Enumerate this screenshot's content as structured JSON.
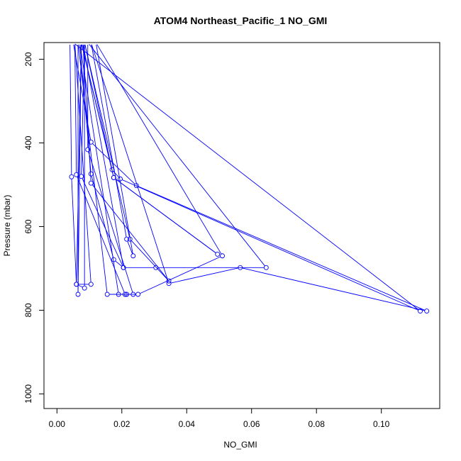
{
  "chart_data": {
    "type": "scatter",
    "title": "ATOM4 Northeast_Pacific_1 NO_GMI",
    "xlabel": "NO_GMI",
    "ylabel": "Pressure (mbar)",
    "xlim": [
      -0.004,
      0.118
    ],
    "ylim": [
      1035,
      160
    ],
    "y_inverted": true,
    "x_ticks": [
      "0.00",
      "0.02",
      "0.04",
      "0.06",
      "0.08",
      "0.10"
    ],
    "y_ticks": [
      "200",
      "400",
      "600",
      "800",
      "1000"
    ],
    "grid": false,
    "legend": "none",
    "colors": {
      "series": "#0000ff",
      "axis": "#000000"
    },
    "series": [
      {
        "points": [
          {
            "x": 0.004,
            "y": 160
          },
          {
            "x": 0.0045,
            "y": 481
          },
          {
            "x": 0.006,
            "y": 738
          },
          {
            "x": 0.0105,
            "y": 738
          },
          {
            "x": 0.0055,
            "y": 160
          },
          {
            "x": 0.006,
            "y": 476
          },
          {
            "x": 0.021,
            "y": 762
          },
          {
            "x": 0.0155,
            "y": 762
          },
          {
            "x": 0.0065,
            "y": 160
          },
          {
            "x": 0.0065,
            "y": 762
          },
          {
            "x": 0.0075,
            "y": 160
          },
          {
            "x": 0.006,
            "y": 738
          },
          {
            "x": 0.0085,
            "y": 747
          },
          {
            "x": 0.0085,
            "y": 160
          },
          {
            "x": 0.0075,
            "y": 480
          },
          {
            "x": 0.0205,
            "y": 698
          },
          {
            "x": 0.0305,
            "y": 698
          },
          {
            "x": 0.0645,
            "y": 698
          },
          {
            "x": 0.0095,
            "y": 160
          },
          {
            "x": 0.0095,
            "y": 416
          },
          {
            "x": 0.0235,
            "y": 762
          },
          {
            "x": 0.019,
            "y": 762
          },
          {
            "x": 0.007,
            "y": 160
          },
          {
            "x": 0.0105,
            "y": 474
          },
          {
            "x": 0.0175,
            "y": 679
          },
          {
            "x": 0.0205,
            "y": 698
          },
          {
            "x": 0.008,
            "y": 160
          },
          {
            "x": 0.0105,
            "y": 496
          },
          {
            "x": 0.0345,
            "y": 730
          },
          {
            "x": 0.0225,
            "y": 630
          },
          {
            "x": 0.0085,
            "y": 160
          },
          {
            "x": 0.0175,
            "y": 483
          },
          {
            "x": 0.0495,
            "y": 666
          },
          {
            "x": 0.0175,
            "y": 483
          },
          {
            "x": 0.0075,
            "y": 160
          },
          {
            "x": 0.017,
            "y": 464
          },
          {
            "x": 0.0195,
            "y": 486
          },
          {
            "x": 0.112,
            "y": 802
          },
          {
            "x": 0.005,
            "y": 160
          },
          {
            "x": 0.0105,
            "y": 398
          },
          {
            "x": 0.0245,
            "y": 502
          },
          {
            "x": 0.114,
            "y": 802
          },
          {
            "x": 0.0565,
            "y": 698
          },
          {
            "x": 0.0345,
            "y": 736
          },
          {
            "x": 0.0105,
            "y": 160
          },
          {
            "x": 0.0215,
            "y": 630
          },
          {
            "x": 0.0235,
            "y": 670
          },
          {
            "x": 0.012,
            "y": 160
          },
          {
            "x": 0.051,
            "y": 670
          },
          {
            "x": 0.025,
            "y": 762
          },
          {
            "x": 0.0215,
            "y": 762
          }
        ]
      }
    ]
  }
}
